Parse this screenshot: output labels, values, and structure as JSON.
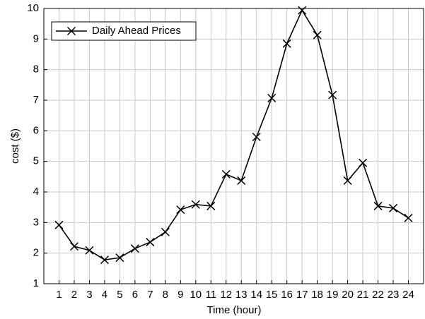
{
  "chart_data": {
    "type": "line",
    "xlabel": "Time (hour)",
    "ylabel": "cost ($)",
    "x": [
      1,
      2,
      3,
      4,
      5,
      6,
      7,
      8,
      9,
      10,
      11,
      12,
      13,
      14,
      15,
      16,
      17,
      18,
      19,
      20,
      21,
      22,
      23,
      24
    ],
    "series": [
      {
        "name": "Daily Ahead Prices",
        "color": "#000000",
        "values": [
          2.92,
          2.22,
          2.09,
          1.78,
          1.85,
          2.15,
          2.36,
          2.69,
          3.42,
          3.59,
          3.54,
          4.58,
          4.37,
          5.8,
          7.07,
          8.85,
          9.94,
          9.13,
          7.17,
          4.37,
          4.95,
          3.54,
          3.47,
          3.15
        ]
      }
    ],
    "xlim": [
      0,
      25
    ],
    "ylim": [
      1,
      10
    ],
    "xticks": [
      1,
      2,
      3,
      4,
      5,
      6,
      7,
      8,
      9,
      10,
      11,
      12,
      13,
      14,
      15,
      16,
      17,
      18,
      19,
      20,
      21,
      22,
      23,
      24
    ],
    "yticks": [
      1,
      2,
      3,
      4,
      5,
      6,
      7,
      8,
      9,
      10
    ],
    "grid": true,
    "legend": "upper-left"
  }
}
